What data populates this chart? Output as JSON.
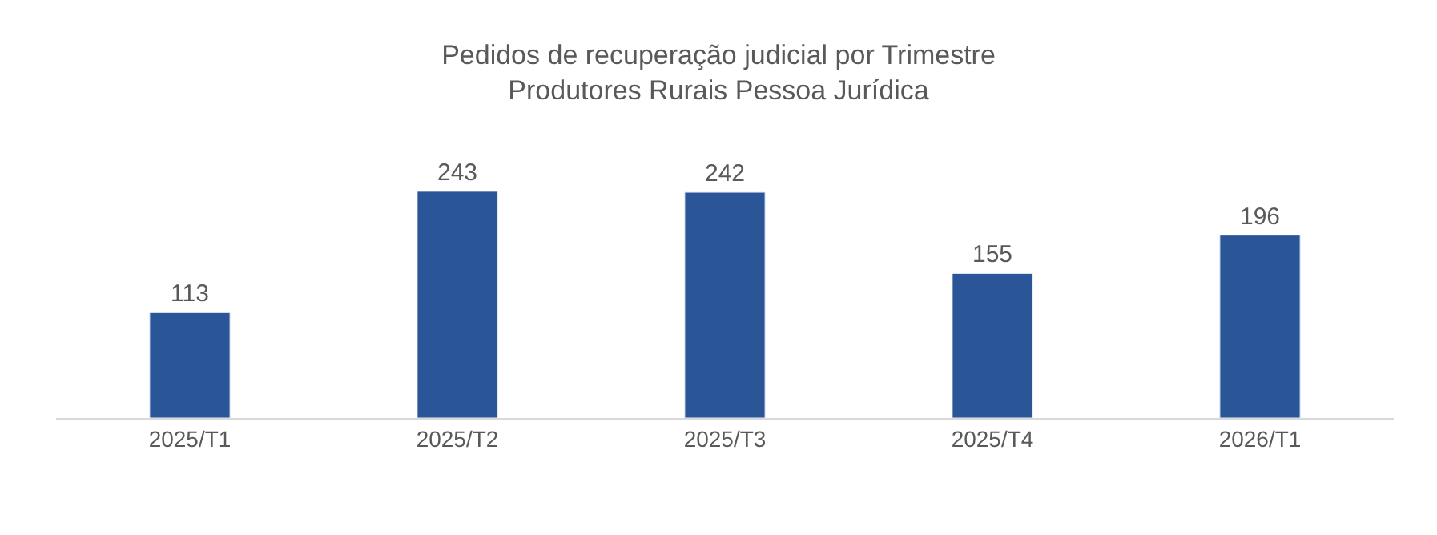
{
  "chart_data": {
    "type": "bar",
    "title": "Pedidos de recuperação judicial por Trimestre\nProdutores Rurais Pessoa Jurídica",
    "categories": [
      "2025/T1",
      "2025/T2",
      "2025/T3",
      "2025/T4",
      "2026/T1"
    ],
    "values": [
      113,
      243,
      242,
      155,
      196
    ],
    "color": "#2a5597",
    "data_labels": true,
    "tick_labels": "x"
  }
}
